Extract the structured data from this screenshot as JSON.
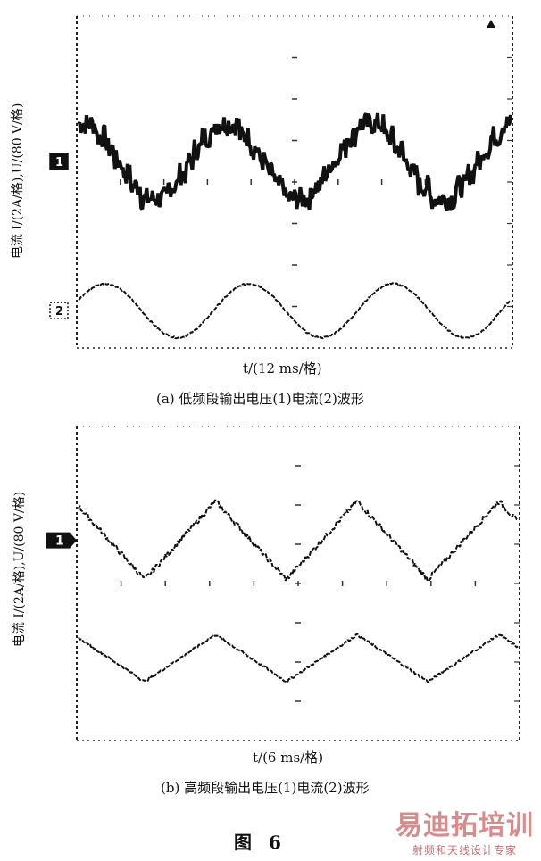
{
  "figure_label": "图 6",
  "watermark": {
    "brand": "易迪拓培训",
    "tagline": "射频和天线设计专家"
  },
  "chart_data": [
    {
      "type": "line",
      "panel": "a",
      "caption": "(a)  低频段输出电压(1)电流(2)波形",
      "xlabel": "t/(12 ms/格)",
      "ylabel": "电流 I/(2A/格),U/(80 V/格)",
      "grid": true,
      "x_divisions": 10,
      "y_divisions": 8,
      "x_range": [
        0,
        10
      ],
      "series": [
        {
          "channel_marker": "1",
          "kind": "pwm_voltage",
          "level": 0.5,
          "amplitude": 0.9,
          "periods": 3.0,
          "phase": 0.0
        },
        {
          "channel_marker": "2",
          "kind": "sine_current",
          "level": -3.1,
          "amplitude": 0.65,
          "periods": 3.0,
          "phase": 0.0
        }
      ]
    },
    {
      "type": "line",
      "panel": "b",
      "caption": "(b)  高频段输出电压(1)电流(2)波形",
      "xlabel": "t/(6 ms/格)",
      "ylabel": "电流 I/(2A/格),U/(80 V/格)",
      "grid": true,
      "x_divisions": 10,
      "y_divisions": 8,
      "x_range": [
        0,
        10
      ],
      "series": [
        {
          "channel_marker": "1",
          "kind": "triangle_voltage",
          "level": 1.1,
          "amplitude": 1.0,
          "periods": 3.1,
          "phase": 0.85
        },
        {
          "channel_marker": "",
          "kind": "triangle_current",
          "level": -1.9,
          "amplitude": 0.6,
          "periods": 3.1,
          "phase": 0.85
        }
      ]
    }
  ]
}
